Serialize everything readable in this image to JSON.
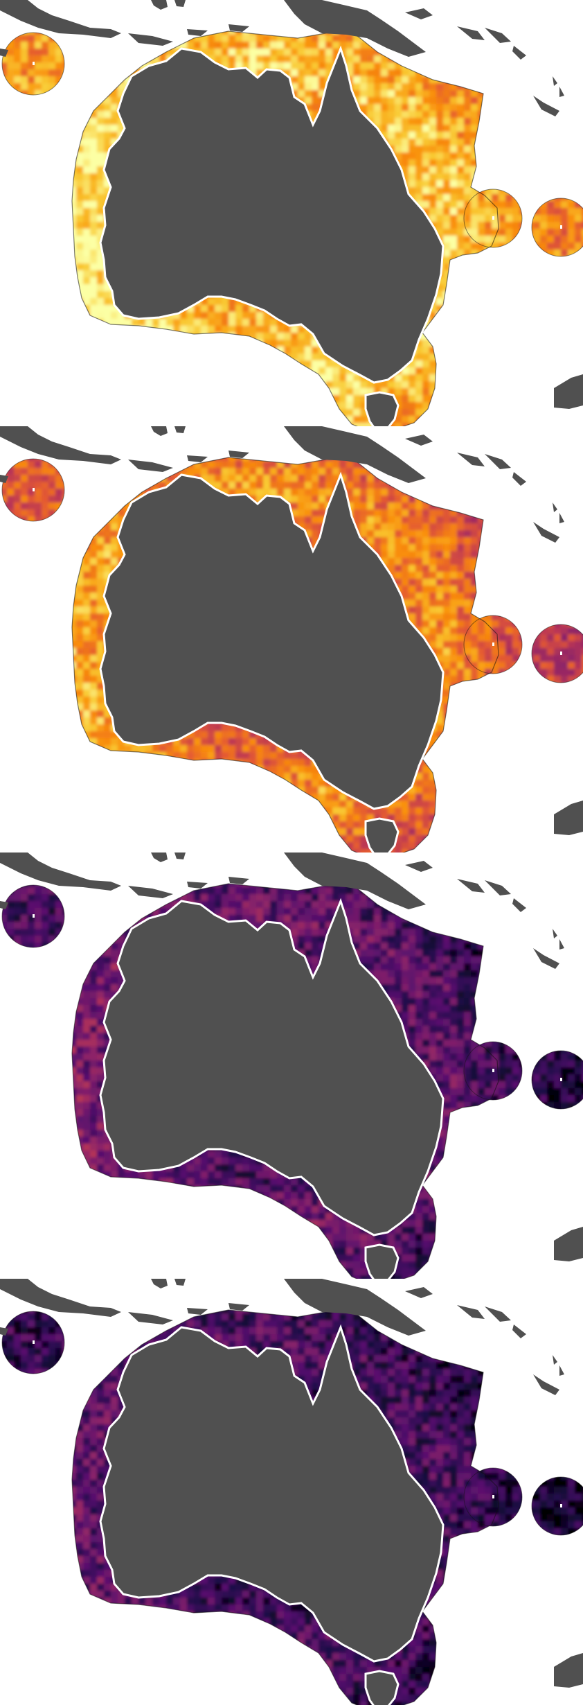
{
  "figure": {
    "panel_count": 4,
    "colormap": "inferno",
    "land_color": "#505050",
    "coastline_color": "#ffffff",
    "background_color": "#ffffff"
  },
  "panels": [
    {
      "id": "panel-1",
      "fill_level": 0.78,
      "inner_boost": 0.16
    },
    {
      "id": "panel-2",
      "fill_level": 0.58,
      "inner_boost": 0.22
    },
    {
      "id": "panel-3",
      "fill_level": 0.18,
      "inner_boost": 0.14
    },
    {
      "id": "panel-4",
      "fill_level": 0.14,
      "inner_boost": 0.12
    }
  ]
}
